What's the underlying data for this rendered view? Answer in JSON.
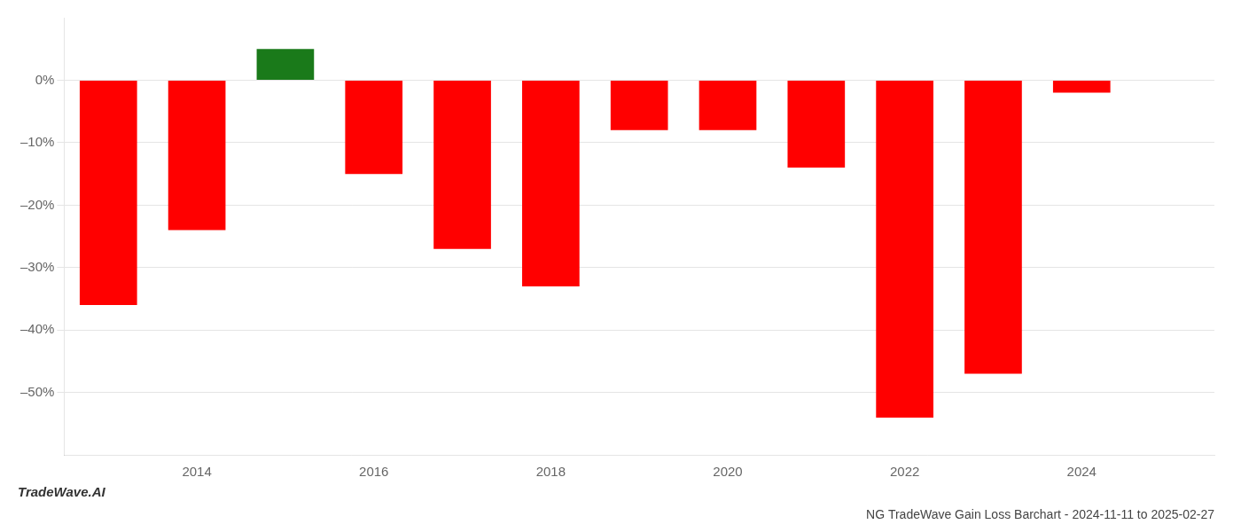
{
  "chart_data": {
    "type": "bar",
    "title": "NG TradeWave Gain Loss Barchart - 2024-11-11 to 2025-02-27",
    "annotations": [
      "TradeWave.AI"
    ],
    "x": [
      2013,
      2014,
      2015,
      2016,
      2017,
      2018,
      2019,
      2020,
      2021,
      2022,
      2023,
      2024
    ],
    "values": [
      -0.36,
      -0.24,
      0.05,
      -0.15,
      -0.27,
      -0.33,
      -0.08,
      -0.08,
      -0.14,
      -0.54,
      -0.47,
      -0.02
    ],
    "colors": [
      "#ff0000",
      "#ff0000",
      "#1a7a1a",
      "#ff0000",
      "#ff0000",
      "#ff0000",
      "#ff0000",
      "#ff0000",
      "#ff0000",
      "#ff0000",
      "#ff0000",
      "#ff0000"
    ],
    "xlim": [
      2012.5,
      2025.5
    ],
    "xticks": [
      2014,
      2016,
      2018,
      2020,
      2022,
      2024
    ],
    "ylim": [
      -0.6,
      0.1
    ],
    "yticks": [
      {
        "value": 0.0,
        "label": "0%"
      },
      {
        "value": -0.1,
        "label": "–10%"
      },
      {
        "value": -0.2,
        "label": "–20%"
      },
      {
        "value": -0.3,
        "label": "–30%"
      },
      {
        "value": -0.4,
        "label": "–40%"
      },
      {
        "value": -0.5,
        "label": "–50%"
      }
    ],
    "grid": "y"
  }
}
